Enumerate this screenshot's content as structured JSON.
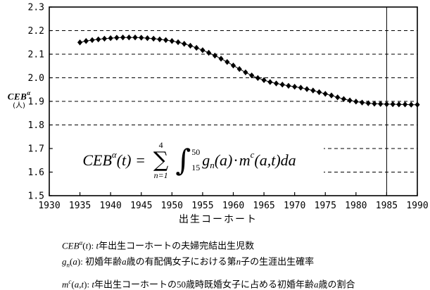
{
  "colors": {
    "ink": "#000000",
    "background": "#ffffff"
  },
  "chart_data": {
    "type": "line",
    "title": "",
    "xlabel": "出生コーホート",
    "ylabel": "CEBα（人）",
    "x": [
      1935,
      1936,
      1937,
      1938,
      1939,
      1940,
      1941,
      1942,
      1943,
      1944,
      1945,
      1946,
      1947,
      1948,
      1949,
      1950,
      1951,
      1952,
      1953,
      1954,
      1955,
      1956,
      1957,
      1958,
      1959,
      1960,
      1961,
      1962,
      1963,
      1964,
      1965,
      1966,
      1967,
      1968,
      1969,
      1970,
      1971,
      1972,
      1973,
      1974,
      1975,
      1976,
      1977,
      1978,
      1979,
      1980,
      1981,
      1982,
      1983,
      1984,
      1985,
      1986,
      1987,
      1988,
      1989,
      1990
    ],
    "values": [
      2.15,
      2.156,
      2.16,
      2.163,
      2.166,
      2.168,
      2.17,
      2.171,
      2.171,
      2.171,
      2.17,
      2.168,
      2.166,
      2.163,
      2.16,
      2.156,
      2.151,
      2.144,
      2.136,
      2.127,
      2.117,
      2.106,
      2.094,
      2.081,
      2.067,
      2.052,
      2.037,
      2.023,
      2.01,
      1.999,
      1.99,
      1.982,
      1.976,
      1.971,
      1.966,
      1.962,
      1.958,
      1.952,
      1.946,
      1.939,
      1.932,
      1.925,
      1.917,
      1.91,
      1.904,
      1.899,
      1.895,
      1.892,
      1.89,
      1.889,
      1.888,
      1.888,
      1.887,
      1.887,
      1.886,
      1.886
    ],
    "xlim": [
      1930,
      1990
    ],
    "ylim": [
      1.5,
      2.3
    ],
    "xticks": [
      1930,
      1935,
      1940,
      1945,
      1950,
      1955,
      1960,
      1965,
      1970,
      1975,
      1980,
      1985,
      1990
    ],
    "yticks": [
      1.5,
      1.6,
      1.7,
      1.8,
      1.9,
      2.0,
      2.1,
      2.2,
      2.3
    ],
    "grid": "horizontal-dashed",
    "legend": "none",
    "marker": "diamond",
    "marker_color": "#000000",
    "line_color": "#000000",
    "vline_x": 1985
  },
  "y_axis_label": {
    "var": "CEB",
    "sup": "α",
    "unit": "(人)"
  },
  "formula": {
    "lhs_var": "CEB",
    "lhs_sup": "α",
    "lhs_arg": "(t)",
    "equals": "=",
    "sum_symbol": "∑",
    "sum_upper": "4",
    "sum_lower": "n=1",
    "int_symbol": "∫",
    "int_upper": "50",
    "int_lower": "15",
    "term1_var": "g",
    "term1_sub": "n",
    "term1_arg": "(a)",
    "dot": "·",
    "term2_var": "m",
    "term2_sup": "c",
    "term2_arg": "(a,t)",
    "differential": "da"
  },
  "notes": [
    {
      "tokens": [
        {
          "t": "CEB",
          "s": "i"
        },
        {
          "t": "α",
          "s": "sup"
        },
        {
          "t": "(",
          "s": ""
        },
        {
          "t": "t",
          "s": "i"
        },
        {
          "t": ")",
          "s": ""
        },
        {
          "t": ": ",
          "s": ""
        },
        {
          "t": "t",
          "s": "i"
        },
        {
          "t": "年出生コーホートの夫婦完結出生児数",
          "s": ""
        }
      ]
    },
    {
      "tokens": [
        {
          "t": "g",
          "s": "i"
        },
        {
          "t": "n",
          "s": "sub"
        },
        {
          "t": "(",
          "s": ""
        },
        {
          "t": "a",
          "s": "i"
        },
        {
          "t": ")",
          "s": ""
        },
        {
          "t": ": ",
          "s": ""
        },
        {
          "t": "初婚年齢",
          "s": ""
        },
        {
          "t": "a",
          "s": "i"
        },
        {
          "t": "歳の有配偶女子における第",
          "s": ""
        },
        {
          "t": "n",
          "s": "i"
        },
        {
          "t": "子の生涯出生確率",
          "s": ""
        }
      ]
    },
    {
      "tokens": [
        {
          "t": "m",
          "s": "i"
        },
        {
          "t": "c",
          "s": "sup"
        },
        {
          "t": "(",
          "s": ""
        },
        {
          "t": "a",
          "s": "i"
        },
        {
          "t": ",",
          "s": ""
        },
        {
          "t": "t",
          "s": "i"
        },
        {
          "t": ")",
          "s": ""
        },
        {
          "t": ": ",
          "s": ""
        },
        {
          "t": "t",
          "s": "i"
        },
        {
          "t": "年出生コーホートの50歳時既婚女子に占める初婚年齢",
          "s": ""
        },
        {
          "t": "a",
          "s": "i"
        },
        {
          "t": "歳の割合",
          "s": ""
        }
      ]
    }
  ]
}
